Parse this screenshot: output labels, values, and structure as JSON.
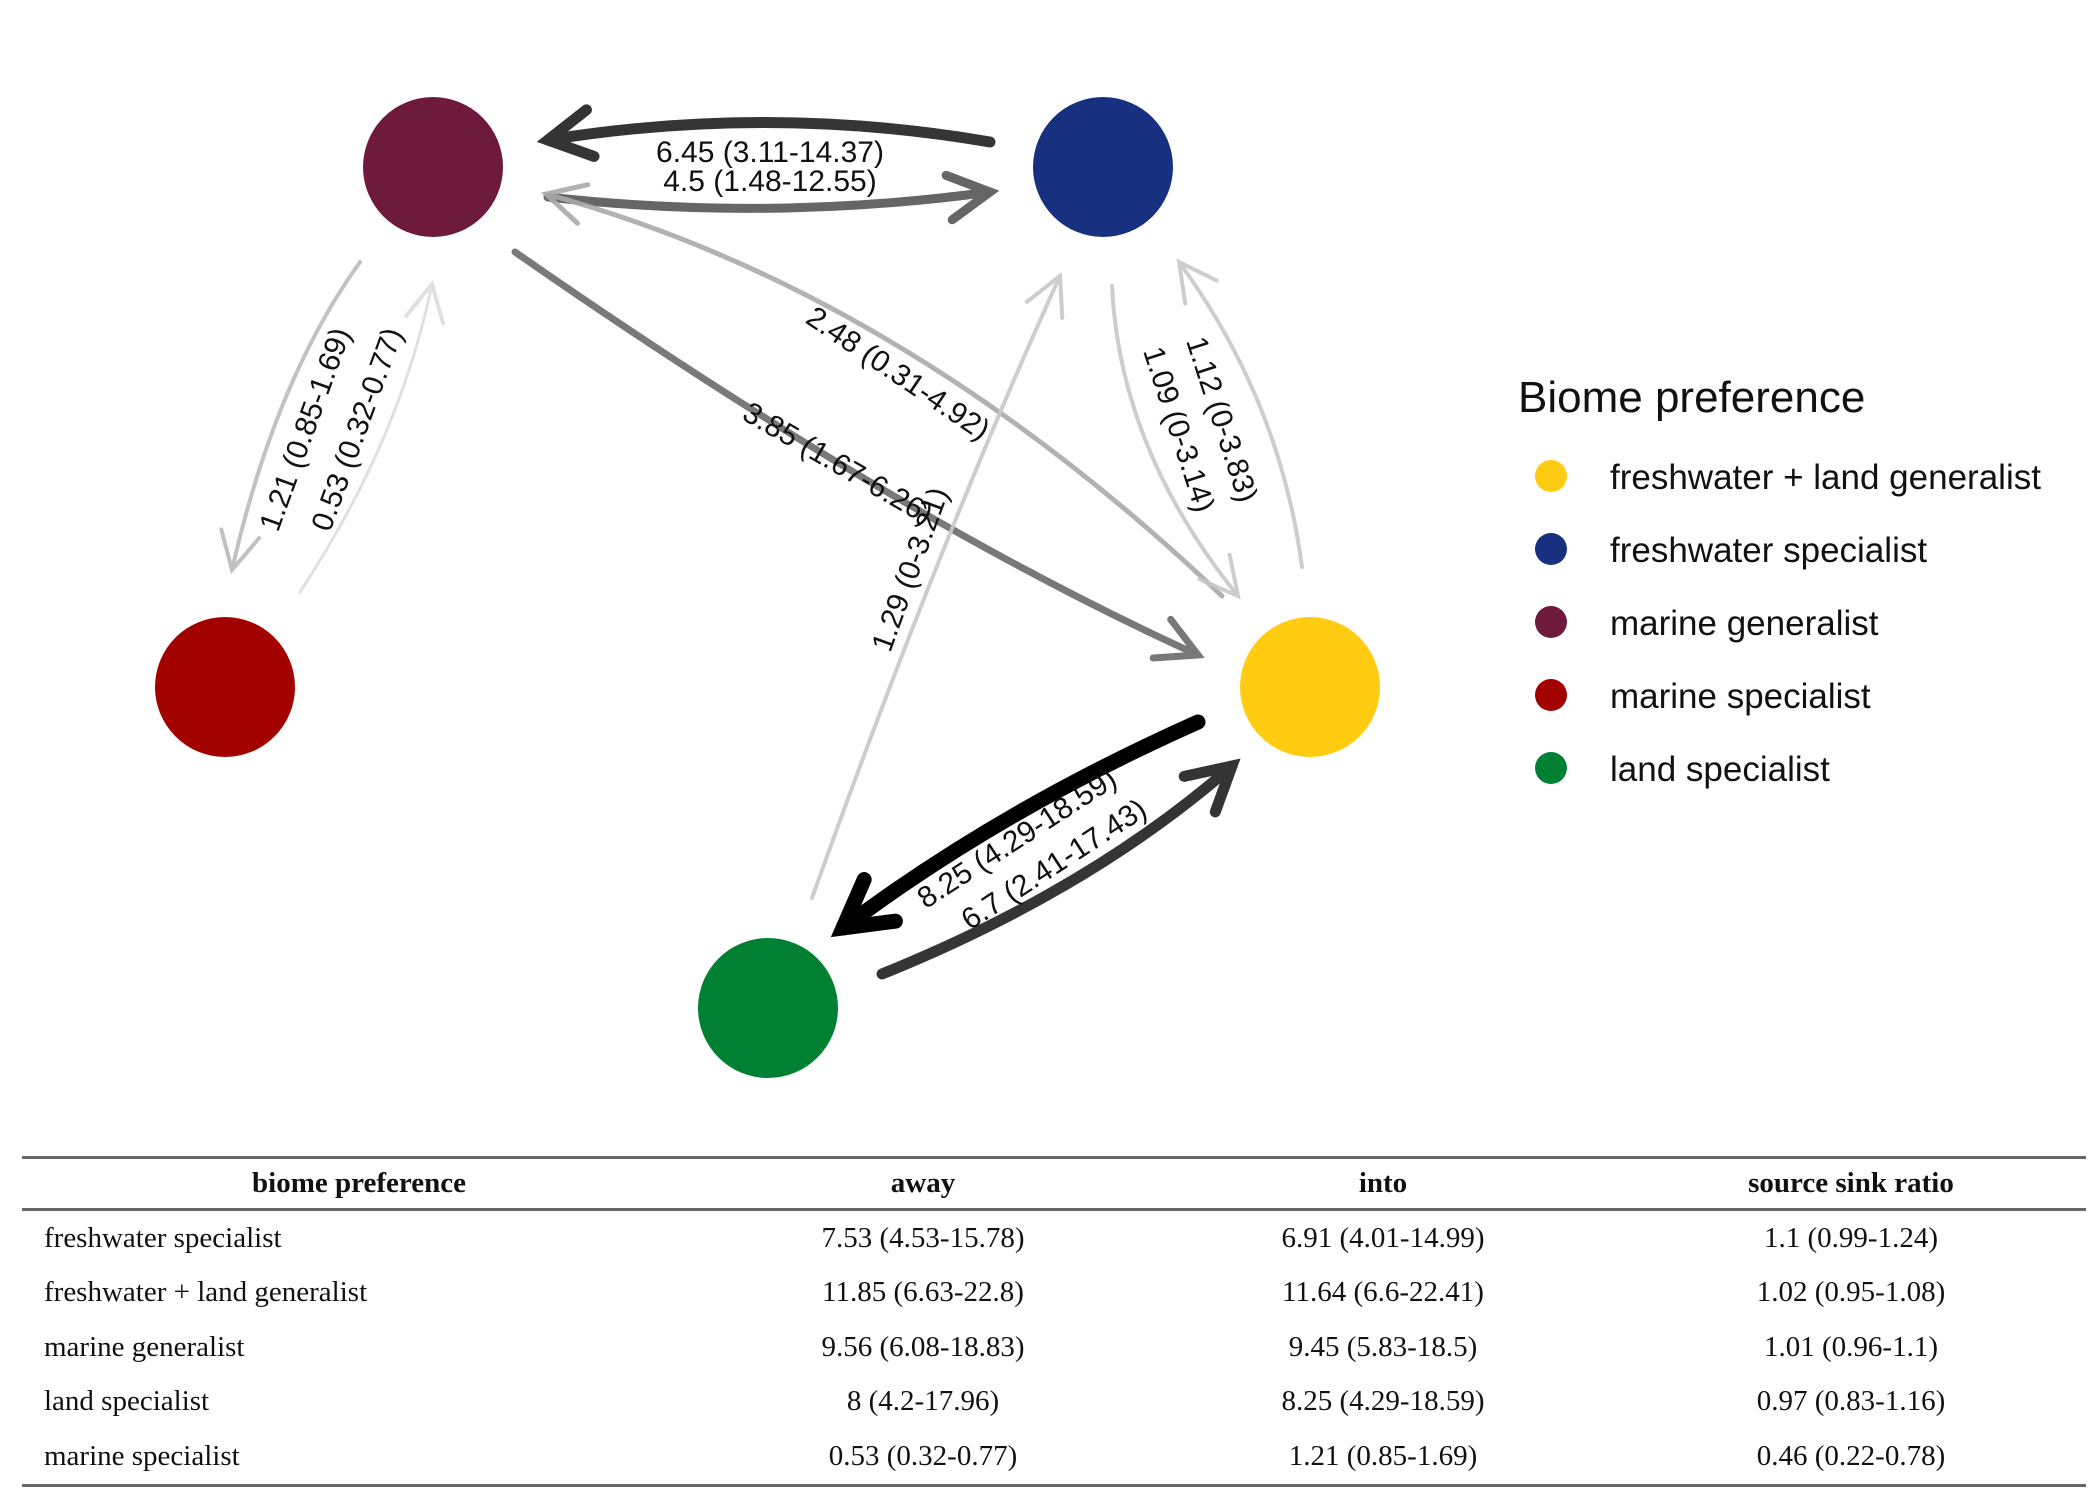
{
  "nodes": [
    {
      "id": "fw_land",
      "color": "#FFCC11"
    },
    {
      "id": "freshwater",
      "color": "#173180"
    },
    {
      "id": "marine_gen",
      "color": "#6E1A3D"
    },
    {
      "id": "marine_spec",
      "color": "#A30000"
    },
    {
      "id": "land",
      "color": "#008032"
    }
  ],
  "edges": [
    {
      "from": "freshwater",
      "to": "marine_gen",
      "label": "6.45 (3.11-14.37)",
      "shade": "#2a2a2a",
      "opacity": 0.95
    },
    {
      "from": "marine_gen",
      "to": "freshwater",
      "label": "4.5 (1.48-12.55)",
      "shade": "#555555",
      "opacity": 0.9
    },
    {
      "from": "marine_gen",
      "to": "marine_spec",
      "label": "1.21 (0.85-1.69)",
      "shade": "#bbbbbb",
      "opacity": 0.9
    },
    {
      "from": "marine_spec",
      "to": "marine_gen",
      "label": "0.53 (0.32-0.77)",
      "shade": "#dddddd",
      "opacity": 0.9
    },
    {
      "from": "fw_land",
      "to": "marine_gen",
      "label": "2.48 (0.31-4.92)",
      "shade": "#aaaaaa",
      "opacity": 0.9
    },
    {
      "from": "marine_gen",
      "to": "fw_land",
      "label": "3.85 (1.67-6.26)",
      "shade": "#6a6a6a",
      "opacity": 0.9
    },
    {
      "from": "land",
      "to": "freshwater",
      "label": "1.29 (0-3.21)",
      "shade": "#c8c8c8",
      "opacity": 0.9
    },
    {
      "from": "freshwater",
      "to": "fw_land",
      "label": "1.09 (0-3.14)",
      "shade": "#c8c8c8",
      "opacity": 0.9
    },
    {
      "from": "fw_land",
      "to": "freshwater",
      "label": "1.12 (0-3.83)",
      "shade": "#c8c8c8",
      "opacity": 0.9
    },
    {
      "from": "fw_land",
      "to": "land",
      "label": "8.25 (4.29-18.59)",
      "shade": "#000000",
      "opacity": 1
    },
    {
      "from": "land",
      "to": "fw_land",
      "label": "6.7 (2.41-17.43)",
      "shade": "#2a2a2a",
      "opacity": 0.95
    }
  ],
  "legend": {
    "title": "Biome preference",
    "items": [
      {
        "label": "freshwater + land generalist",
        "color": "#FFCC11"
      },
      {
        "label": "freshwater specialist",
        "color": "#173180"
      },
      {
        "label": "marine generalist",
        "color": "#6E1A3D"
      },
      {
        "label": "marine specialist",
        "color": "#A30000"
      },
      {
        "label": "land specialist",
        "color": "#008032"
      }
    ]
  },
  "table": {
    "headers": [
      "biome preference",
      "away",
      "into",
      "source sink ratio"
    ],
    "rows": [
      [
        "freshwater specialist",
        "7.53 (4.53-15.78)",
        "6.91 (4.01-14.99)",
        "1.1 (0.99-1.24)"
      ],
      [
        "freshwater + land generalist",
        "11.85 (6.63-22.8)",
        "11.64 (6.6-22.41)",
        "1.02 (0.95-1.08)"
      ],
      [
        "marine generalist",
        "9.56 (6.08-18.83)",
        "9.45 (5.83-18.5)",
        "1.01 (0.96-1.1)"
      ],
      [
        "land specialist",
        "8 (4.2-17.96)",
        "8.25 (4.29-18.59)",
        "0.97 (0.83-1.16)"
      ],
      [
        "marine specialist",
        "0.53 (0.32-0.77)",
        "1.21 (0.85-1.69)",
        "0.46 (0.22-0.78)"
      ]
    ]
  }
}
